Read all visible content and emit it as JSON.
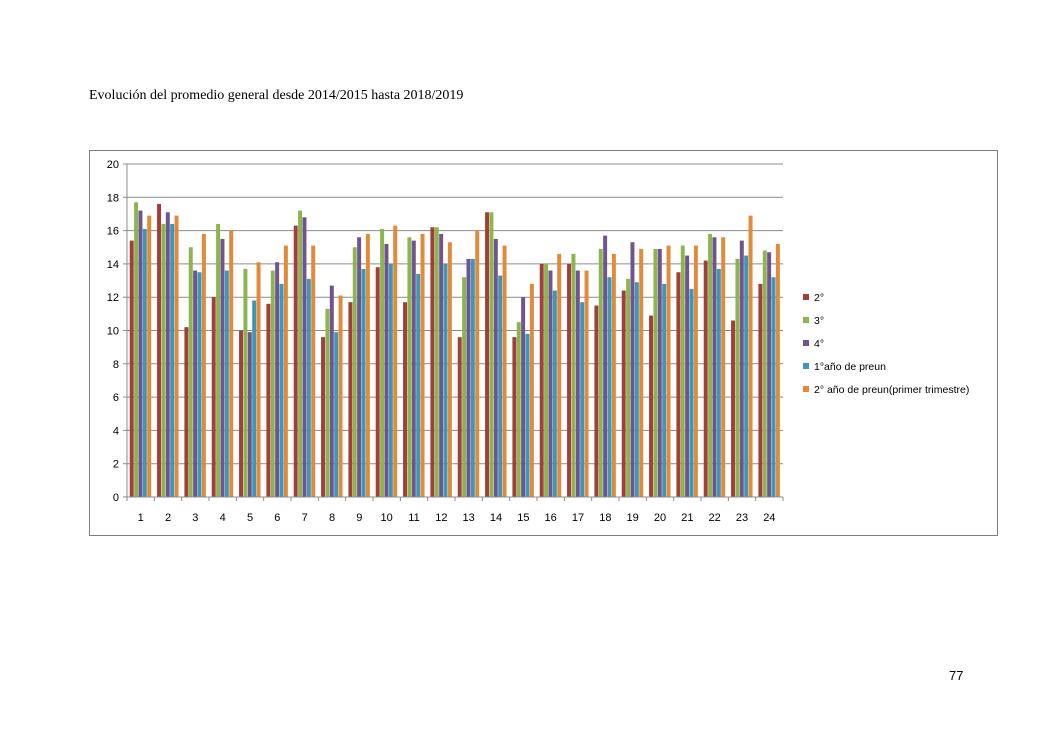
{
  "page": {
    "title": "Evolución del promedio general desde 2014/2015 hasta 2018/2019",
    "page_number": "77"
  },
  "chart_data": {
    "type": "bar",
    "title": "",
    "xlabel": "",
    "ylabel": "",
    "ylim": [
      0,
      20
    ],
    "yticks": [
      0,
      2,
      4,
      6,
      8,
      10,
      12,
      14,
      16,
      18,
      20
    ],
    "grid": true,
    "legend": "right",
    "categories": [
      "1",
      "2",
      "3",
      "4",
      "5",
      "6",
      "7",
      "8",
      "9",
      "10",
      "11",
      "12",
      "13",
      "14",
      "15",
      "16",
      "17",
      "18",
      "19",
      "20",
      "21",
      "22",
      "23",
      "24"
    ],
    "series": [
      {
        "name": "2°",
        "color": "#a33f3b",
        "values": [
          15.4,
          17.6,
          10.2,
          12.0,
          10.0,
          11.6,
          16.3,
          9.6,
          11.7,
          13.8,
          11.7,
          16.2,
          9.6,
          17.1,
          9.6,
          14.0,
          14.0,
          11.5,
          12.4,
          10.9,
          13.5,
          14.2,
          10.6,
          12.8
        ]
      },
      {
        "name": "3°",
        "color": "#8db44e",
        "values": [
          17.7,
          16.4,
          15.0,
          16.4,
          13.7,
          13.6,
          17.2,
          11.3,
          15.0,
          16.1,
          15.6,
          16.2,
          13.2,
          17.1,
          10.5,
          14.0,
          14.6,
          14.9,
          13.1,
          14.9,
          15.1,
          15.8,
          14.3,
          14.8
        ]
      },
      {
        "name": "4°",
        "color": "#6e558f",
        "values": [
          17.2,
          17.1,
          13.6,
          15.5,
          9.9,
          14.1,
          16.8,
          12.7,
          15.6,
          15.2,
          15.4,
          15.8,
          14.3,
          15.5,
          12.0,
          13.6,
          13.6,
          15.7,
          15.3,
          14.9,
          14.5,
          15.6,
          15.4,
          14.7
        ]
      },
      {
        "name": "1°año de preun",
        "color": "#3e97b6",
        "values": [
          16.1,
          16.4,
          13.5,
          13.6,
          11.8,
          12.8,
          13.1,
          9.9,
          13.7,
          14.0,
          13.4,
          14.0,
          14.3,
          13.3,
          9.8,
          12.4,
          11.7,
          13.2,
          12.9,
          12.8,
          12.5,
          13.7,
          14.5,
          13.2
        ]
      },
      {
        "name": "2° año de preun(primer trimestre)",
        "color": "#e08a3a",
        "values": [
          16.9,
          16.9,
          15.8,
          16.0,
          14.1,
          15.1,
          15.1,
          12.1,
          15.8,
          16.3,
          15.8,
          15.3,
          16.0,
          15.1,
          12.8,
          14.6,
          13.6,
          14.6,
          14.9,
          15.1,
          15.1,
          15.6,
          16.9,
          15.2
        ]
      }
    ]
  }
}
